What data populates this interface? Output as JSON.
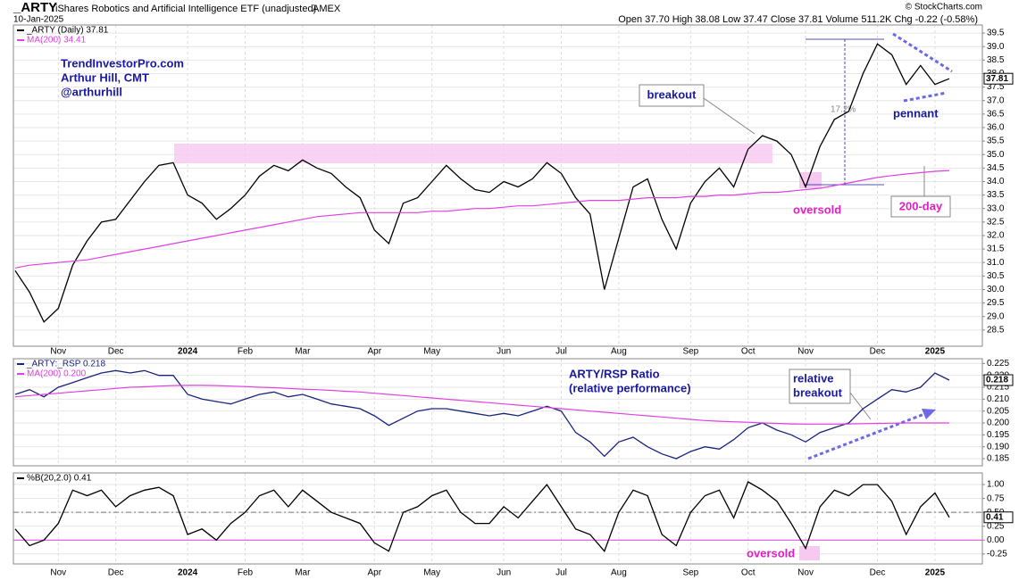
{
  "header": {
    "symbol": "_ARTY",
    "description": "iShares Robotics and Artificial Intelligence ETF (unadjusted)",
    "exchange": "AMEX",
    "date": "10-Jan-2025",
    "copyright": "© StockCharts.com",
    "quote": "Open 37.70  High 38.08  Low 37.47  Close 37.81  Volume 511.2K  Chg -0.22 (-0.58%)"
  },
  "annotations": {
    "author_site": "TrendInvestorPro.com",
    "author_name": "Arthur Hill, CMT",
    "author_handle": "@arthurhill",
    "breakout": "breakout",
    "gain": "17.2%",
    "pennant": "pennant",
    "oversold_price": "oversold",
    "ma_label": "200-day",
    "ratio_title": "ARTY/RSP Ratio",
    "ratio_subtitle": "(relative performance)",
    "relative_1": "relative",
    "relative_2": "breakout",
    "oversold_pctb": "oversold"
  },
  "chart_data": [
    {
      "type": "line",
      "grid": true,
      "categories": [
        null,
        null,
        null,
        "Nov",
        null,
        null,
        null,
        "Dec",
        null,
        null,
        null,
        null,
        "2024",
        null,
        null,
        null,
        "Feb",
        null,
        null,
        null,
        "Mar",
        null,
        null,
        null,
        null,
        "Apr",
        null,
        null,
        null,
        "May",
        null,
        null,
        null,
        null,
        "Jun",
        null,
        null,
        null,
        "Jul",
        null,
        null,
        null,
        "Aug",
        null,
        null,
        null,
        null,
        "Sep",
        null,
        null,
        null,
        "Oct",
        null,
        null,
        null,
        "Nov",
        null,
        null,
        null,
        null,
        "Dec",
        null,
        null,
        null,
        "2025",
        null
      ],
      "ylim": [
        27.9,
        39.8
      ],
      "yticks": [
        28.5,
        {
          "value": 29,
          "label": "29.0"
        },
        29.5,
        {
          "value": 30,
          "label": "30.0"
        },
        30.5,
        {
          "value": 31,
          "label": "31.0"
        },
        31.5,
        {
          "value": 32,
          "label": "32.0"
        },
        32.5,
        {
          "value": 33,
          "label": "33.0"
        },
        33.5,
        {
          "value": 34,
          "label": "34.0"
        },
        34.5,
        {
          "value": 35,
          "label": "35.0"
        },
        35.5,
        {
          "value": 36,
          "label": "36.0"
        },
        36.5,
        {
          "value": 37,
          "label": "37.0"
        },
        37.5,
        {
          "value": 38,
          "label": "38.0"
        },
        38.5,
        {
          "value": 39,
          "label": "39.0"
        },
        39.5
      ],
      "series": [
        {
          "name": "_ARTY (Daily) 37.81",
          "color": "#000000",
          "values": [
            30.7,
            29.9,
            28.8,
            29.3,
            30.9,
            31.8,
            32.5,
            32.6,
            33.3,
            34.0,
            34.6,
            34.7,
            33.5,
            33.2,
            32.6,
            33.0,
            33.5,
            34.2,
            34.6,
            34.4,
            34.8,
            34.5,
            34.3,
            33.8,
            33.4,
            32.2,
            31.7,
            33.2,
            33.4,
            34.0,
            34.6,
            34.1,
            33.7,
            33.6,
            34.0,
            33.8,
            34.1,
            34.7,
            34.3,
            33.4,
            32.8,
            30.0,
            31.9,
            33.8,
            34.1,
            32.6,
            31.5,
            33.2,
            34.0,
            34.5,
            33.8,
            35.2,
            35.7,
            35.5,
            35.0,
            33.8,
            35.3,
            36.3,
            36.6,
            38.0,
            39.1,
            38.7,
            37.6,
            38.3,
            37.6,
            37.81
          ]
        },
        {
          "name": "MA(200) 34.41",
          "color": "#e040e0",
          "values": [
            30.8,
            30.9,
            30.95,
            31.0,
            31.05,
            31.1,
            31.2,
            31.3,
            31.4,
            31.5,
            31.6,
            31.7,
            31.8,
            31.9,
            32.0,
            32.1,
            32.2,
            32.3,
            32.4,
            32.5,
            32.6,
            32.7,
            32.75,
            32.8,
            32.85,
            32.85,
            32.85,
            32.85,
            32.85,
            32.9,
            32.9,
            32.95,
            33.0,
            33.0,
            33.05,
            33.1,
            33.1,
            33.15,
            33.2,
            33.25,
            33.3,
            33.3,
            33.3,
            33.35,
            33.4,
            33.4,
            33.4,
            33.45,
            33.45,
            33.5,
            33.5,
            33.55,
            33.6,
            33.6,
            33.65,
            33.7,
            33.75,
            33.85,
            33.95,
            34.05,
            34.15,
            34.22,
            34.28,
            34.33,
            34.38,
            34.41
          ]
        }
      ]
    },
    {
      "type": "line",
      "grid": true,
      "ylim": [
        0.182,
        0.227
      ],
      "yticks": [
        0.185,
        {
          "value": 0.19,
          "label": "0.190"
        },
        0.195,
        {
          "value": 0.2,
          "label": "0.200"
        },
        0.205,
        {
          "value": 0.21,
          "label": "0.210"
        },
        0.215,
        {
          "value": 0.22,
          "label": "0.220"
        },
        0.225
      ],
      "series": [
        {
          "name": "_ARTY:_RSP 0.218",
          "color": "#1a237e",
          "values": [
            0.212,
            0.214,
            0.211,
            0.215,
            0.217,
            0.219,
            0.221,
            0.222,
            0.221,
            0.222,
            0.22,
            0.22,
            0.212,
            0.21,
            0.209,
            0.208,
            0.21,
            0.212,
            0.213,
            0.211,
            0.212,
            0.21,
            0.208,
            0.207,
            0.206,
            0.203,
            0.199,
            0.202,
            0.205,
            0.206,
            0.206,
            0.205,
            0.204,
            0.203,
            0.204,
            0.203,
            0.205,
            0.207,
            0.205,
            0.196,
            0.192,
            0.186,
            0.192,
            0.194,
            0.19,
            0.187,
            0.185,
            0.188,
            0.19,
            0.189,
            0.193,
            0.198,
            0.2,
            0.197,
            0.195,
            0.192,
            0.196,
            0.198,
            0.2,
            0.206,
            0.21,
            0.214,
            0.213,
            0.215,
            0.221,
            0.218
          ]
        },
        {
          "name": "MA(200) 0.200",
          "color": "#e040e0",
          "values": [
            0.211,
            0.2115,
            0.212,
            0.2125,
            0.213,
            0.2135,
            0.214,
            0.2145,
            0.215,
            0.2152,
            0.2155,
            0.2157,
            0.2158,
            0.2158,
            0.2157,
            0.2155,
            0.2153,
            0.215,
            0.2148,
            0.2145,
            0.2142,
            0.214,
            0.2137,
            0.2133,
            0.213,
            0.2125,
            0.212,
            0.2115,
            0.211,
            0.2105,
            0.21,
            0.2095,
            0.209,
            0.2085,
            0.208,
            0.2075,
            0.207,
            0.2065,
            0.206,
            0.2055,
            0.205,
            0.2045,
            0.204,
            0.2035,
            0.203,
            0.2025,
            0.202,
            0.2015,
            0.201,
            0.2007,
            0.2005,
            0.2003,
            0.2,
            0.1998,
            0.1996,
            0.1995,
            0.1995,
            0.1995,
            0.1996,
            0.1997,
            0.1998,
            0.1999,
            0.2,
            0.2,
            0.2,
            0.2
          ]
        }
      ]
    },
    {
      "type": "line",
      "grid": true,
      "categories": [
        null,
        null,
        null,
        "Nov",
        null,
        null,
        null,
        "Dec",
        null,
        null,
        null,
        null,
        "2024",
        null,
        null,
        null,
        "Feb",
        null,
        null,
        null,
        "Mar",
        null,
        null,
        null,
        null,
        "Apr",
        null,
        null,
        null,
        "May",
        null,
        null,
        null,
        null,
        "Jun",
        null,
        null,
        null,
        "Jul",
        null,
        null,
        null,
        "Aug",
        null,
        null,
        null,
        null,
        "Sep",
        null,
        null,
        null,
        "Oct",
        null,
        null,
        null,
        "Nov",
        null,
        null,
        null,
        null,
        "Dec",
        null,
        null,
        null,
        "2025",
        null
      ],
      "ylim": [
        -0.43,
        1.21
      ],
      "yticks": [
        -0.25,
        {
          "value": 0,
          "label": "0.00"
        },
        0.25,
        {
          "value": 0.5,
          "label": "0.50"
        },
        0.75,
        {
          "value": 1,
          "label": "1.00"
        }
      ],
      "reference_lines": [
        {
          "value": 0,
          "color": "#e040e0"
        },
        {
          "value": 0.5,
          "color": "#777777",
          "dash": true
        }
      ],
      "series": [
        {
          "name": "%B(20,2.0) 0.41",
          "color": "#000000",
          "values": [
            0.2,
            -0.1,
            0.0,
            0.3,
            0.9,
            0.8,
            0.9,
            0.6,
            0.8,
            0.9,
            0.95,
            0.8,
            0.1,
            0.2,
            0.0,
            0.3,
            0.5,
            0.8,
            0.9,
            0.6,
            0.9,
            0.7,
            0.5,
            0.4,
            0.3,
            -0.05,
            -0.2,
            0.5,
            0.6,
            0.8,
            0.9,
            0.5,
            0.3,
            0.3,
            0.6,
            0.4,
            0.7,
            1.0,
            0.6,
            0.2,
            0.1,
            -0.2,
            0.5,
            0.9,
            0.8,
            0.1,
            -0.1,
            0.5,
            0.8,
            0.9,
            0.4,
            1.05,
            0.9,
            0.7,
            0.3,
            -0.15,
            0.6,
            0.9,
            0.8,
            1.0,
            1.0,
            0.7,
            0.1,
            0.6,
            0.85,
            0.41
          ]
        }
      ]
    }
  ]
}
